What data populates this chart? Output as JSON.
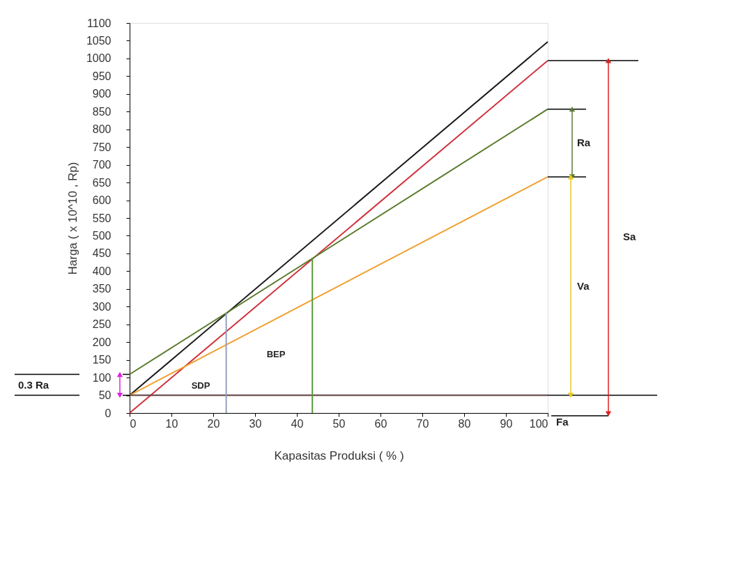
{
  "chart_data": {
    "type": "line",
    "xlabel": "Kapasitas Produksi ( % )",
    "ylabel": "Harga ( x 10^10 , Rp)",
    "xlim": [
      0,
      100
    ],
    "ylim": [
      0,
      1100
    ],
    "xticks": [
      0,
      10,
      20,
      30,
      40,
      50,
      60,
      70,
      80,
      90,
      100
    ],
    "yticks": [
      0,
      50,
      100,
      150,
      200,
      250,
      300,
      350,
      400,
      450,
      500,
      550,
      600,
      650,
      700,
      750,
      800,
      850,
      900,
      950,
      1000,
      1050,
      1100
    ],
    "grid": false,
    "marker": "none",
    "line_style": "solid",
    "series": [
      {
        "color": "#1a1a1a",
        "x": [
          0,
          100
        ],
        "values": [
          50,
          1047
        ]
      },
      {
        "color": "#d0303a",
        "x": [
          0,
          100
        ],
        "values": [
          0,
          994
        ]
      },
      {
        "color": "#5a7a2a",
        "x": [
          0,
          100
        ],
        "values": [
          109,
          857
        ]
      },
      {
        "color": "#f0a030",
        "x": [
          0,
          100
        ],
        "values": [
          50,
          666
        ]
      },
      {
        "color": "#5a3a3a",
        "x": [
          0,
          100
        ],
        "values": [
          50,
          50
        ]
      },
      {
        "color": "#8fa0c0",
        "x": [
          23.1,
          23.1
        ],
        "values": [
          0,
          283
        ]
      },
      {
        "color": "#5a9a3a",
        "x": [
          43.7,
          43.7
        ],
        "values": [
          0,
          437
        ]
      }
    ],
    "annotations": [
      "0.3 Ra",
      "Ra",
      "Va",
      "Sa",
      "Fa",
      "SDP",
      "BEP"
    ]
  }
}
